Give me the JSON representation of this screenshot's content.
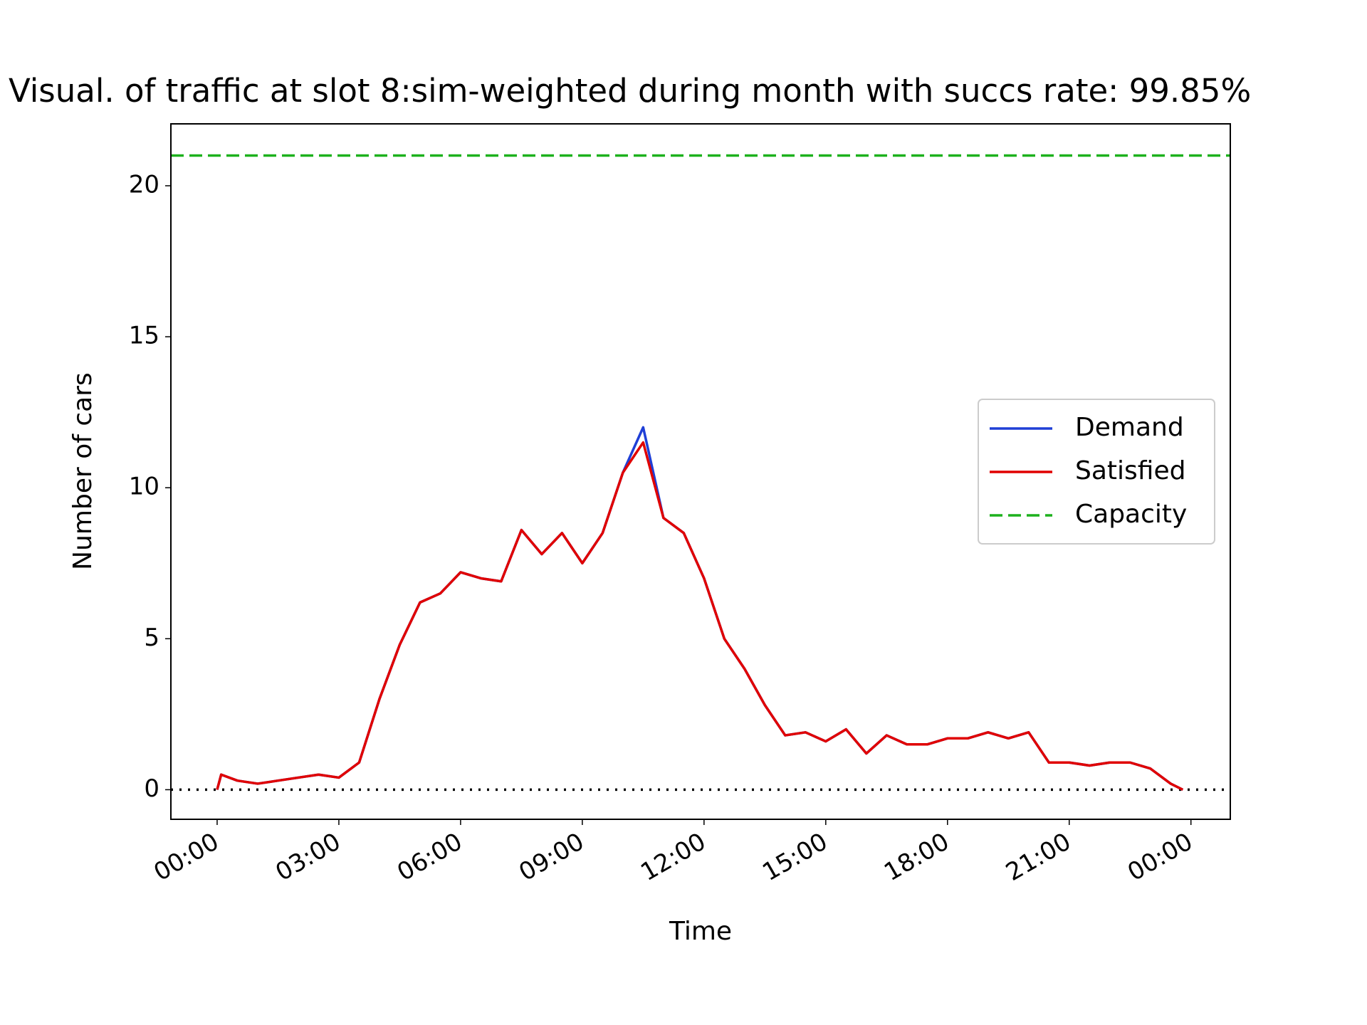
{
  "chart_data": {
    "type": "line",
    "title": "Visual. of traffic at slot 8:sim-weighted during month with succs rate: 99.85%",
    "x_label": "Time",
    "y_label": "Number of cars",
    "x": [
      0,
      0.1,
      0.5,
      1,
      1.5,
      2,
      2.5,
      3,
      3.5,
      4,
      4.5,
      5,
      5.5,
      6,
      6.5,
      7,
      7.5,
      8,
      8.5,
      9,
      9.5,
      10,
      10.5,
      11,
      11.5,
      12,
      12.5,
      13,
      13.5,
      14,
      14.5,
      15,
      15.5,
      16,
      16.5,
      17,
      17.5,
      18,
      18.5,
      19,
      19.5,
      20,
      20.5,
      21,
      21.5,
      22,
      22.5,
      23,
      23.5,
      23.8
    ],
    "series": [
      {
        "name": "Demand",
        "color": "#1f3fd6",
        "values": [
          0,
          0.5,
          0.3,
          0.2,
          0.3,
          0.4,
          0.5,
          0.4,
          0.9,
          3.0,
          4.8,
          6.2,
          6.5,
          7.2,
          7.0,
          6.9,
          8.6,
          7.8,
          8.5,
          7.5,
          8.5,
          10.5,
          12.0,
          9.0,
          8.5,
          7.0,
          5.0,
          4.0,
          2.8,
          1.8,
          1.9,
          1.6,
          2.0,
          1.2,
          1.8,
          1.5,
          1.5,
          1.7,
          1.7,
          1.9,
          1.7,
          1.9,
          0.9,
          0.9,
          0.8,
          0.9,
          0.9,
          0.7,
          0.2,
          0
        ]
      },
      {
        "name": "Satisfied",
        "color": "#e00000",
        "values": [
          0,
          0.5,
          0.3,
          0.2,
          0.3,
          0.4,
          0.5,
          0.4,
          0.9,
          3.0,
          4.8,
          6.2,
          6.5,
          7.2,
          7.0,
          6.9,
          8.6,
          7.8,
          8.5,
          7.5,
          8.5,
          10.5,
          11.5,
          9.0,
          8.5,
          7.0,
          5.0,
          4.0,
          2.8,
          1.8,
          1.9,
          1.6,
          2.0,
          1.2,
          1.8,
          1.5,
          1.5,
          1.7,
          1.7,
          1.9,
          1.7,
          1.9,
          0.9,
          0.9,
          0.8,
          0.9,
          0.9,
          0.7,
          0.2,
          0
        ]
      }
    ],
    "hlines": [
      {
        "name": "Capacity",
        "value": 21,
        "color": "#1db11d",
        "dash": "dashed"
      },
      {
        "value": 0,
        "color": "#000000",
        "dash": "dotted"
      }
    ],
    "xlim": [
      -1.14,
      24.97
    ],
    "xticks": [
      {
        "value": 0,
        "label": "00:00"
      },
      {
        "value": 3,
        "label": "03:00"
      },
      {
        "value": 6,
        "label": "06:00"
      },
      {
        "value": 9,
        "label": "09:00"
      },
      {
        "value": 12,
        "label": "12:00"
      },
      {
        "value": 15,
        "label": "15:00"
      },
      {
        "value": 18,
        "label": "18:00"
      },
      {
        "value": 21,
        "label": "21:00"
      },
      {
        "value": 24,
        "label": "00:00"
      }
    ],
    "ylim": [
      -0.98,
      22.05
    ],
    "yticks": [
      0,
      5,
      10,
      15,
      20
    ],
    "legend": "right"
  }
}
